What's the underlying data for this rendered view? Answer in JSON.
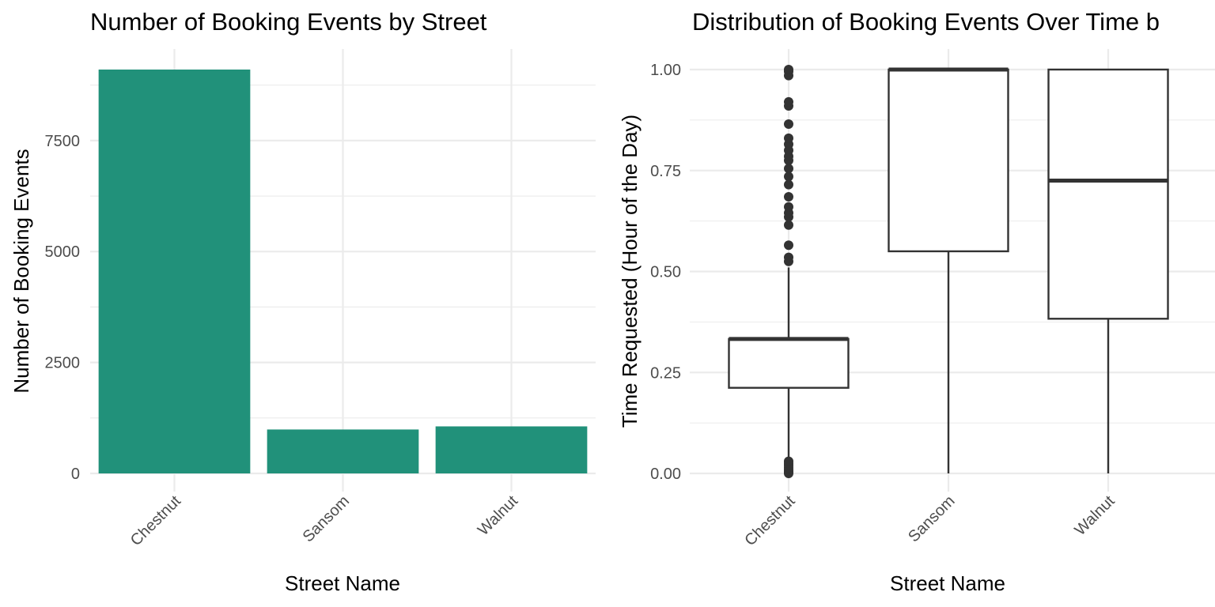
{
  "chart_data": [
    {
      "type": "bar",
      "title": "Number of Booking Events by Street",
      "xlabel": "Street Name",
      "ylabel": "Number of Booking Events",
      "categories": [
        "Chestnut",
        "Sansom",
        "Walnut"
      ],
      "values": [
        9100,
        990,
        1060
      ],
      "ylim": [
        0,
        9100
      ],
      "yticks": [
        0,
        2500,
        5000,
        7500
      ],
      "ytick_labels": [
        "0",
        "2500",
        "5000",
        "7500"
      ],
      "bar_color": "#21917a",
      "grid": true
    },
    {
      "type": "box",
      "title": "Distribution of Booking Events Over Time b",
      "xlabel": "Street Name",
      "ylabel": "Time Requested (Hour of the Day)",
      "categories": [
        "Chestnut",
        "Sansom",
        "Walnut"
      ],
      "ylim": [
        0,
        1
      ],
      "yticks": [
        0,
        0.25,
        0.5,
        0.75,
        1.0
      ],
      "ytick_labels": [
        "0.00",
        "0.25",
        "0.50",
        "0.75",
        "1.00"
      ],
      "boxes": [
        {
          "category": "Chestnut",
          "whisker_low": 0.02,
          "q1": 0.212,
          "median": 0.333,
          "q3": 0.333,
          "whisker_high": 0.51,
          "outliers": [
            0.0,
            0.003,
            0.006,
            0.01,
            0.015,
            0.02,
            0.025,
            0.03,
            0.525,
            0.535,
            0.565,
            0.615,
            0.635,
            0.645,
            0.66,
            0.685,
            0.715,
            0.735,
            0.755,
            0.775,
            0.785,
            0.8,
            0.815,
            0.83,
            0.865,
            0.91,
            0.92,
            0.985,
            0.995,
            1.0
          ]
        },
        {
          "category": "Sansom",
          "whisker_low": 0.0,
          "q1": 0.55,
          "median": 1.0,
          "q3": 1.0,
          "whisker_high": 1.0,
          "outliers": []
        },
        {
          "category": "Walnut",
          "whisker_low": 0.0,
          "q1": 0.383,
          "median": 0.725,
          "q3": 1.0,
          "whisker_high": 1.0,
          "outliers": []
        }
      ],
      "box_fill": "#ffffff",
      "box_stroke": "#333333",
      "grid": true
    }
  ]
}
